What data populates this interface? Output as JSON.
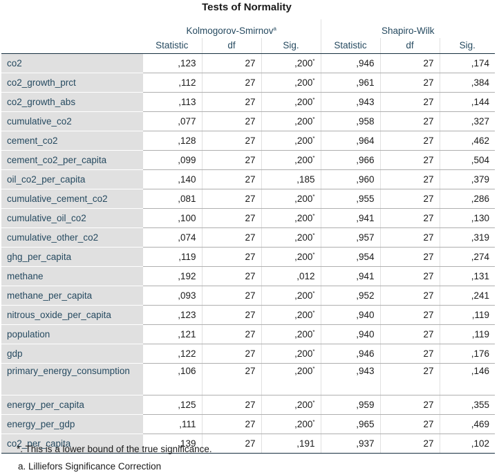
{
  "title": "Tests of Normality",
  "groups": {
    "ks": "Kolmogorov-Smirnov",
    "ks_sup": "a",
    "sw": "Shapiro-Wilk"
  },
  "columns": [
    "Statistic",
    "df",
    "Sig.",
    "Statistic",
    "df",
    "Sig."
  ],
  "rows": [
    {
      "label": "co2",
      "ks_stat": ",123",
      "ks_df": "27",
      "ks_sig": ",200",
      "ks_mark": "*",
      "sw_stat": ",946",
      "sw_df": "27",
      "sw_sig": ",174"
    },
    {
      "label": "co2_growth_prct",
      "ks_stat": ",112",
      "ks_df": "27",
      "ks_sig": ",200",
      "ks_mark": "*",
      "sw_stat": ",961",
      "sw_df": "27",
      "sw_sig": ",384"
    },
    {
      "label": "co2_growth_abs",
      "ks_stat": ",113",
      "ks_df": "27",
      "ks_sig": ",200",
      "ks_mark": "*",
      "sw_stat": ",943",
      "sw_df": "27",
      "sw_sig": ",144"
    },
    {
      "label": "cumulative_co2",
      "ks_stat": ",077",
      "ks_df": "27",
      "ks_sig": ",200",
      "ks_mark": "*",
      "sw_stat": ",958",
      "sw_df": "27",
      "sw_sig": ",327"
    },
    {
      "label": "cement_co2",
      "ks_stat": ",128",
      "ks_df": "27",
      "ks_sig": ",200",
      "ks_mark": "*",
      "sw_stat": ",964",
      "sw_df": "27",
      "sw_sig": ",462"
    },
    {
      "label": "cement_co2_per_capita",
      "ks_stat": ",099",
      "ks_df": "27",
      "ks_sig": ",200",
      "ks_mark": "*",
      "sw_stat": ",966",
      "sw_df": "27",
      "sw_sig": ",504"
    },
    {
      "label": "oil_co2_per_capita",
      "ks_stat": ",140",
      "ks_df": "27",
      "ks_sig": ",185",
      "ks_mark": "",
      "sw_stat": ",960",
      "sw_df": "27",
      "sw_sig": ",379"
    },
    {
      "label": "cumulative_cement_co2",
      "ks_stat": ",081",
      "ks_df": "27",
      "ks_sig": ",200",
      "ks_mark": "*",
      "sw_stat": ",955",
      "sw_df": "27",
      "sw_sig": ",286"
    },
    {
      "label": "cumulative_oil_co2",
      "ks_stat": ",100",
      "ks_df": "27",
      "ks_sig": ",200",
      "ks_mark": "*",
      "sw_stat": ",941",
      "sw_df": "27",
      "sw_sig": ",130"
    },
    {
      "label": "cumulative_other_co2",
      "ks_stat": ",074",
      "ks_df": "27",
      "ks_sig": ",200",
      "ks_mark": "*",
      "sw_stat": ",957",
      "sw_df": "27",
      "sw_sig": ",319"
    },
    {
      "label": "ghg_per_capita",
      "ks_stat": ",119",
      "ks_df": "27",
      "ks_sig": ",200",
      "ks_mark": "*",
      "sw_stat": ",954",
      "sw_df": "27",
      "sw_sig": ",274"
    },
    {
      "label": "methane",
      "ks_stat": ",192",
      "ks_df": "27",
      "ks_sig": ",012",
      "ks_mark": "",
      "sw_stat": ",941",
      "sw_df": "27",
      "sw_sig": ",131"
    },
    {
      "label": "methane_per_capita",
      "ks_stat": ",093",
      "ks_df": "27",
      "ks_sig": ",200",
      "ks_mark": "*",
      "sw_stat": ",952",
      "sw_df": "27",
      "sw_sig": ",241"
    },
    {
      "label": "nitrous_oxide_per_capita",
      "ks_stat": ",123",
      "ks_df": "27",
      "ks_sig": ",200",
      "ks_mark": "*",
      "sw_stat": ",940",
      "sw_df": "27",
      "sw_sig": ",119"
    },
    {
      "label": "population",
      "ks_stat": ",121",
      "ks_df": "27",
      "ks_sig": ",200",
      "ks_mark": "*",
      "sw_stat": ",940",
      "sw_df": "27",
      "sw_sig": ",119"
    },
    {
      "label": "gdp",
      "ks_stat": ",122",
      "ks_df": "27",
      "ks_sig": ",200",
      "ks_mark": "*",
      "sw_stat": ",946",
      "sw_df": "27",
      "sw_sig": ",176"
    },
    {
      "label": "primary_energy_consumption",
      "ks_stat": ",106",
      "ks_df": "27",
      "ks_sig": ",200",
      "ks_mark": "*",
      "sw_stat": ",943",
      "sw_df": "27",
      "sw_sig": ",146"
    },
    {
      "label": "energy_per_capita",
      "ks_stat": ",125",
      "ks_df": "27",
      "ks_sig": ",200",
      "ks_mark": "*",
      "sw_stat": ",959",
      "sw_df": "27",
      "sw_sig": ",355"
    },
    {
      "label": "energy_per_gdp",
      "ks_stat": ",111",
      "ks_df": "27",
      "ks_sig": ",200",
      "ks_mark": "*",
      "sw_stat": ",965",
      "sw_df": "27",
      "sw_sig": ",469"
    },
    {
      "label": "co2_per_capita",
      "ks_stat": ",139",
      "ks_df": "27",
      "ks_sig": ",191",
      "ks_mark": "",
      "sw_stat": ",937",
      "sw_df": "27",
      "sw_sig": ",102"
    }
  ],
  "footnotes": [
    "*. This is a lower bound of the true significance.",
    "a. Lilliefors Significance Correction"
  ],
  "colors": {
    "header_text": "#264a60",
    "label_bg": "#e0e0e0",
    "rule": "#152e3e"
  }
}
